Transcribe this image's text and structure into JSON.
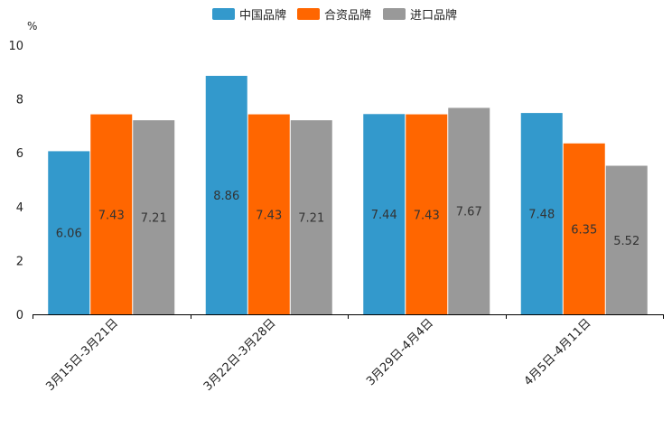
{
  "chart_data": {
    "type": "bar",
    "title": "",
    "xlabel": "",
    "ylabel": "%",
    "ylim": [
      0,
      10
    ],
    "yticks": [
      0,
      2,
      4,
      6,
      8,
      10
    ],
    "grid": false,
    "legend_position": "top-center",
    "categories": [
      "3月15日-3月21日",
      "3月22日-3月28日",
      "3月29日-4月4日",
      "4月5日-4月11日"
    ],
    "series": [
      {
        "name": "中国品牌",
        "color": "#3399cc",
        "values": [
          6.06,
          8.86,
          7.44,
          7.48
        ]
      },
      {
        "name": "合资品牌",
        "color": "#ff6600",
        "values": [
          7.43,
          7.43,
          7.43,
          6.35
        ]
      },
      {
        "name": "进口品牌",
        "color": "#999999",
        "values": [
          7.21,
          7.21,
          7.67,
          5.52
        ]
      }
    ]
  }
}
